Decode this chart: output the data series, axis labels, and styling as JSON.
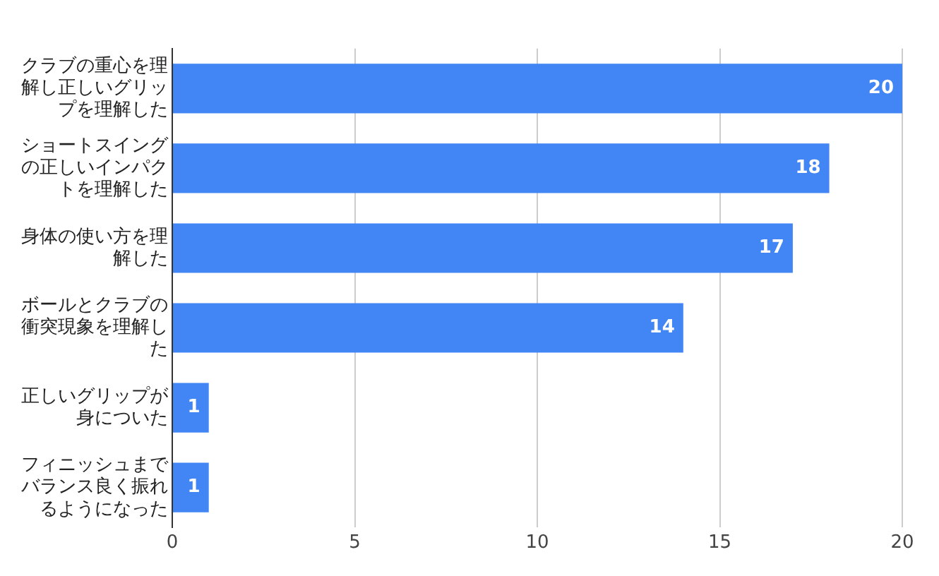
{
  "chart_data": {
    "type": "bar",
    "orientation": "horizontal",
    "categories": [
      "クラブの重心を理解し正しいグリップを理解した",
      "ショートスイングの正しいインパクトを理解した",
      "身体の使い方を理解した",
      "ボールとクラブの衝突現象を理解した",
      "正しいグリップが身についた",
      "フィニッシュまでバランス良く振れるようになった"
    ],
    "values": [
      20,
      18,
      17,
      14,
      1,
      1
    ],
    "color": "#4285f4",
    "xlim": [
      0,
      20
    ],
    "xticks": [
      0,
      5,
      10,
      15,
      20
    ],
    "grid": "x",
    "data_labels": true,
    "legend": false
  }
}
